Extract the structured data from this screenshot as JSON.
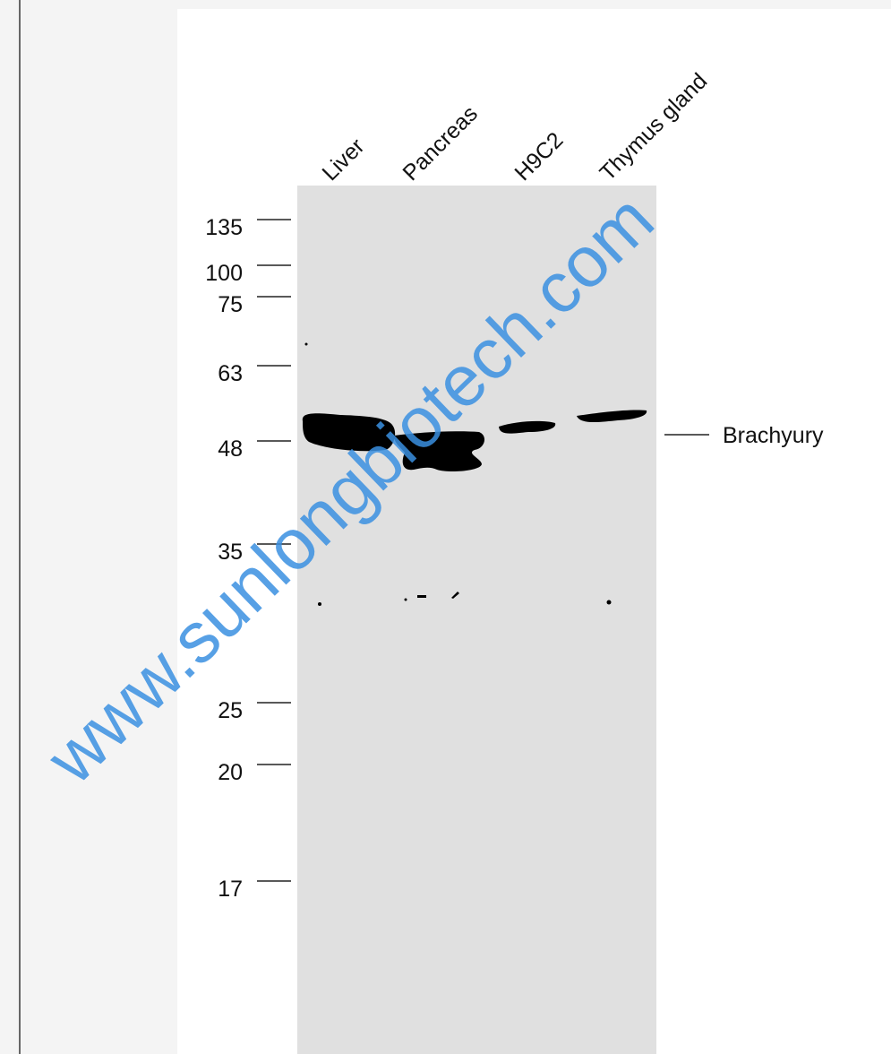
{
  "lanes": [
    "Liver",
    "Pancreas",
    "H9C2",
    "Thymus gland"
  ],
  "markers": [
    "135",
    "100",
    "75",
    "63",
    "48",
    "35",
    "25",
    "20",
    "17"
  ],
  "band_label": "Brachyury",
  "watermark": "www.sunlongbiotech.com"
}
